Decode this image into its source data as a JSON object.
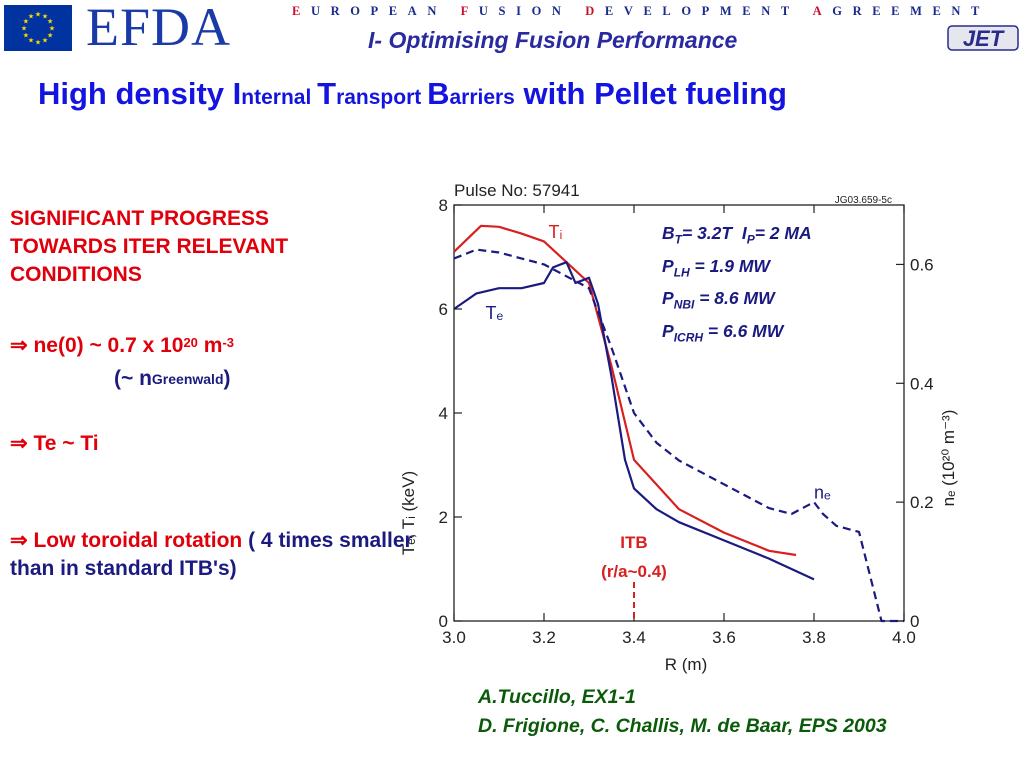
{
  "header": {
    "logo_text": "EFDA",
    "tagline": "EUROPEAN FUSION DEVELOPMENT AGREEMENT",
    "subtitle": "I- Optimising Fusion Performance",
    "jet_logo": "JET",
    "flag_icon": "eu-flag-icon",
    "colors": {
      "logo_blue": "#1a3aa8",
      "flag_blue": "#0033a0",
      "tagline_red": "#c8102e"
    }
  },
  "title": {
    "parts": [
      "High density ",
      "I",
      "nternal ",
      "T",
      "ransport ",
      "B",
      "arriers",
      " with Pellet fueling"
    ]
  },
  "bullets": {
    "progress": [
      "SIGNIFICANT PROGRESS",
      "TOWARDS ITER RELEVANT",
      "CONDITIONS"
    ],
    "arrow": "⇒",
    "b1_text": " ne(0) ~ 0.7 x 10",
    "b1_exp": "20",
    "b1_unit": " m",
    "b1_unit_exp": "-3",
    "b1_paren_open": "(~ n",
    "b1_paren_sub": "Greenwald",
    "b1_paren_close": ")",
    "b2_text": " Te ~ Ti",
    "b3_red": " Low toroidal rotation",
    "b3_rest": " ( 4 times smaller than in standard ITB's)"
  },
  "references": [
    "A.Tuccillo, EX1-1",
    "D. Frigione, C. Challis, M. de Baar, EPS 2003"
  ],
  "params": {
    "bt_label": "B",
    "bt_sub": "T",
    "bt_val": "= 3.2T",
    "ip_label": "I",
    "ip_sub": "P",
    "ip_val": "= 2 MA",
    "plh_label": "P",
    "plh_sub": "LH",
    "plh_val": " = 1.9 MW",
    "pnbi_label": "P",
    "pnbi_sub": "NBI",
    "pnbi_val": " = 8.6 MW",
    "picrh_label": "P",
    "picrh_sub": "ICRH",
    "picrh_val": " = 6.6  MW"
  },
  "chart_data": {
    "type": "line",
    "title": "Pulse No: 57941",
    "code": "JG03.659-5c",
    "xlabel": "R (m)",
    "ylabel": "Tₑ, Tᵢ (keV)",
    "y2label": "nₑ (10²⁰ m⁻³)",
    "xlim": [
      3.0,
      4.0
    ],
    "ylim": [
      0,
      8
    ],
    "y2lim": [
      0,
      0.7
    ],
    "xticks": [
      "3.0",
      "3.2",
      "3.4",
      "3.6",
      "3.8",
      "4.0"
    ],
    "yticks": [
      "0",
      "2",
      "4",
      "6",
      "8"
    ],
    "y2ticks": [
      "0",
      "0.2",
      "0.4",
      "0.6"
    ],
    "series": [
      {
        "name": "Tᵢ",
        "axis": "left",
        "color": "#d82020",
        "dash": false,
        "x": [
          3.0,
          3.06,
          3.1,
          3.15,
          3.2,
          3.25,
          3.3,
          3.35,
          3.4,
          3.5,
          3.6,
          3.7,
          3.76
        ],
        "y": [
          7.1,
          7.6,
          7.58,
          7.45,
          7.3,
          6.9,
          6.5,
          4.9,
          3.1,
          2.15,
          1.7,
          1.35,
          1.27
        ]
      },
      {
        "name": "Tₑ",
        "axis": "left",
        "color": "#1a1a80",
        "dash": false,
        "x": [
          3.0,
          3.05,
          3.1,
          3.15,
          3.2,
          3.22,
          3.25,
          3.27,
          3.3,
          3.32,
          3.35,
          3.38,
          3.4,
          3.45,
          3.5,
          3.6,
          3.7,
          3.75,
          3.8
        ],
        "y": [
          6.0,
          6.3,
          6.4,
          6.4,
          6.5,
          6.8,
          6.9,
          6.5,
          6.6,
          6.1,
          4.7,
          3.1,
          2.55,
          2.15,
          1.9,
          1.55,
          1.2,
          1.0,
          0.8
        ]
      },
      {
        "name": "nₑ",
        "axis": "right",
        "color": "#1a1a80",
        "dash": true,
        "x": [
          3.0,
          3.05,
          3.1,
          3.2,
          3.3,
          3.35,
          3.4,
          3.45,
          3.5,
          3.6,
          3.7,
          3.75,
          3.8,
          3.82,
          3.85,
          3.9,
          3.95,
          4.0
        ],
        "y": [
          0.61,
          0.625,
          0.62,
          0.6,
          0.56,
          0.46,
          0.35,
          0.3,
          0.27,
          0.23,
          0.19,
          0.18,
          0.2,
          0.18,
          0.16,
          0.15,
          0.0,
          0.0
        ]
      }
    ],
    "annotations": {
      "itb": "ITB",
      "itb_sub": "(r/a~0.4)",
      "itb_x": 3.4
    }
  }
}
